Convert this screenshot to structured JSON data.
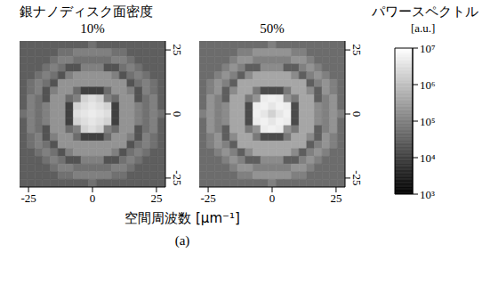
{
  "title": "銀ナノディスク面密度",
  "figure_label": "(a)",
  "x_label": "空間周波数 [μm⁻¹]",
  "colorbar": {
    "title": "パワースペクトル",
    "unit": "[a.u.]",
    "range": [
      1000,
      10000000
    ],
    "ticks": [
      {
        "value": 1000,
        "label": "10³"
      },
      {
        "value": 10000,
        "label": "10⁴"
      },
      {
        "value": 100000,
        "label": "10⁵"
      },
      {
        "value": 1000000,
        "label": "10⁶"
      },
      {
        "value": 10000000,
        "label": "10⁷"
      }
    ],
    "log": true,
    "colors": [
      "#000000",
      "#ffffff"
    ]
  },
  "chart_data": [
    {
      "type": "heatmap",
      "title": "10%",
      "x": [
        -27,
        -24,
        -21,
        -18,
        -15,
        -12,
        -9,
        -6,
        -3,
        0,
        3,
        6,
        9,
        12,
        15,
        18,
        21,
        24,
        27
      ],
      "y": [
        27,
        24,
        21,
        18,
        15,
        12,
        9,
        6,
        3,
        0,
        -3,
        -6,
        -9,
        -12,
        -15,
        -18,
        -21,
        -24,
        -27
      ],
      "xlim": [
        -28.5,
        28.5
      ],
      "ylim": [
        -28.5,
        28.5
      ],
      "xticks": [
        -25,
        0,
        25
      ],
      "yticks": [
        -25,
        0,
        25
      ],
      "cells": [
        [
          30000.0,
          30000.0,
          30000.0,
          30000.0,
          30000.0,
          30000.0,
          30000.0,
          30000.0,
          30000.0,
          60000.0,
          30000.0,
          30000.0,
          30000.0,
          30000.0,
          30000.0,
          30000.0,
          30000.0,
          30000.0,
          30000.0
        ],
        [
          30000.0,
          30000.0,
          30000.0,
          30000.0,
          30000.0,
          60000.0,
          60000.0,
          100000.0,
          100000.0,
          100000.0,
          100000.0,
          100000.0,
          60000.0,
          60000.0,
          30000.0,
          30000.0,
          30000.0,
          30000.0,
          30000.0
        ],
        [
          30000.0,
          30000.0,
          30000.0,
          30000.0,
          60000.0,
          100000.0,
          100000.0,
          60000.0,
          60000.0,
          60000.0,
          60000.0,
          60000.0,
          100000.0,
          100000.0,
          60000.0,
          30000.0,
          30000.0,
          30000.0,
          30000.0
        ],
        [
          30000.0,
          30000.0,
          30000.0,
          60000.0,
          100000.0,
          60000.0,
          20000.0,
          20000.0,
          100000.0,
          100000.0,
          100000.0,
          20000.0,
          20000.0,
          60000.0,
          100000.0,
          60000.0,
          30000.0,
          30000.0,
          30000.0
        ],
        [
          30000.0,
          30000.0,
          60000.0,
          100000.0,
          60000.0,
          20000.0,
          100000.0,
          200000.0,
          200000.0,
          200000.0,
          200000.0,
          200000.0,
          100000.0,
          20000.0,
          60000.0,
          100000.0,
          60000.0,
          30000.0,
          30000.0
        ],
        [
          30000.0,
          60000.0,
          100000.0,
          60000.0,
          20000.0,
          200000.0,
          200000.0,
          200000.0,
          200000.0,
          200000.0,
          200000.0,
          200000.0,
          200000.0,
          200000.0,
          20000.0,
          60000.0,
          100000.0,
          60000.0,
          30000.0
        ],
        [
          30000.0,
          60000.0,
          100000.0,
          20000.0,
          100000.0,
          200000.0,
          200000.0,
          50000.0,
          10000.0,
          10000.0,
          10000.0,
          50000.0,
          200000.0,
          200000.0,
          100000.0,
          20000.0,
          100000.0,
          60000.0,
          30000.0
        ],
        [
          30000.0,
          100000.0,
          60000.0,
          20000.0,
          200000.0,
          200000.0,
          50000.0,
          100000.0,
          2000000.0,
          3000000.0,
          2000000.0,
          100000.0,
          50000.0,
          200000.0,
          200000.0,
          20000.0,
          60000.0,
          100000.0,
          30000.0
        ],
        [
          30000.0,
          100000.0,
          60000.0,
          100000.0,
          200000.0,
          200000.0,
          10000.0,
          2000000.0,
          3000000.0,
          4000000.0,
          3000000.0,
          2000000.0,
          10000.0,
          200000.0,
          200000.0,
          100000.0,
          60000.0,
          100000.0,
          30000.0
        ],
        [
          60000.0,
          100000.0,
          60000.0,
          100000.0,
          200000.0,
          200000.0,
          10000.0,
          3000000.0,
          4000000.0,
          5000000.0,
          4000000.0,
          3000000.0,
          10000.0,
          200000.0,
          200000.0,
          100000.0,
          60000.0,
          100000.0,
          60000.0
        ],
        [
          30000.0,
          100000.0,
          60000.0,
          100000.0,
          200000.0,
          200000.0,
          10000.0,
          2000000.0,
          3000000.0,
          4000000.0,
          3000000.0,
          2000000.0,
          10000.0,
          200000.0,
          200000.0,
          100000.0,
          60000.0,
          100000.0,
          30000.0
        ],
        [
          30000.0,
          100000.0,
          60000.0,
          20000.0,
          200000.0,
          200000.0,
          50000.0,
          100000.0,
          2000000.0,
          3000000.0,
          2000000.0,
          100000.0,
          50000.0,
          200000.0,
          200000.0,
          20000.0,
          60000.0,
          100000.0,
          30000.0
        ],
        [
          30000.0,
          60000.0,
          100000.0,
          20000.0,
          100000.0,
          200000.0,
          200000.0,
          50000.0,
          10000.0,
          10000.0,
          10000.0,
          50000.0,
          200000.0,
          200000.0,
          100000.0,
          20000.0,
          100000.0,
          60000.0,
          30000.0
        ],
        [
          30000.0,
          60000.0,
          100000.0,
          60000.0,
          20000.0,
          200000.0,
          200000.0,
          200000.0,
          200000.0,
          200000.0,
          200000.0,
          200000.0,
          200000.0,
          200000.0,
          20000.0,
          60000.0,
          100000.0,
          60000.0,
          30000.0
        ],
        [
          30000.0,
          30000.0,
          60000.0,
          100000.0,
          60000.0,
          20000.0,
          100000.0,
          200000.0,
          200000.0,
          200000.0,
          200000.0,
          200000.0,
          100000.0,
          20000.0,
          60000.0,
          100000.0,
          60000.0,
          30000.0,
          30000.0
        ],
        [
          30000.0,
          30000.0,
          30000.0,
          60000.0,
          100000.0,
          60000.0,
          20000.0,
          20000.0,
          100000.0,
          100000.0,
          100000.0,
          20000.0,
          20000.0,
          60000.0,
          100000.0,
          60000.0,
          30000.0,
          30000.0,
          30000.0
        ],
        [
          30000.0,
          30000.0,
          30000.0,
          30000.0,
          60000.0,
          100000.0,
          100000.0,
          60000.0,
          60000.0,
          60000.0,
          60000.0,
          60000.0,
          100000.0,
          100000.0,
          60000.0,
          30000.0,
          30000.0,
          30000.0,
          30000.0
        ],
        [
          30000.0,
          30000.0,
          30000.0,
          30000.0,
          30000.0,
          60000.0,
          60000.0,
          100000.0,
          100000.0,
          100000.0,
          100000.0,
          100000.0,
          60000.0,
          60000.0,
          30000.0,
          30000.0,
          30000.0,
          30000.0,
          30000.0
        ],
        [
          30000.0,
          30000.0,
          30000.0,
          30000.0,
          30000.0,
          30000.0,
          30000.0,
          30000.0,
          30000.0,
          60000.0,
          30000.0,
          30000.0,
          30000.0,
          30000.0,
          30000.0,
          30000.0,
          30000.0,
          30000.0,
          30000.0
        ]
      ]
    },
    {
      "type": "heatmap",
      "title": "50%",
      "x": [
        -27,
        -24,
        -21,
        -18,
        -15,
        -12,
        -9,
        -6,
        -3,
        0,
        3,
        6,
        9,
        12,
        15,
        18,
        21,
        24,
        27
      ],
      "y": [
        27,
        24,
        21,
        18,
        15,
        12,
        9,
        6,
        3,
        0,
        -3,
        -6,
        -9,
        -12,
        -15,
        -18,
        -21,
        -24,
        -27
      ],
      "xlim": [
        -28.5,
        28.5
      ],
      "ylim": [
        -28.5,
        28.5
      ],
      "xticks": [
        -25,
        0,
        25
      ],
      "yticks": [
        -25,
        0,
        25
      ],
      "cells": [
        [
          50000.0,
          50000.0,
          50000.0,
          50000.0,
          50000.0,
          50000.0,
          50000.0,
          50000.0,
          50000.0,
          100000.0,
          50000.0,
          50000.0,
          50000.0,
          50000.0,
          50000.0,
          50000.0,
          50000.0,
          50000.0,
          50000.0
        ],
        [
          50000.0,
          50000.0,
          50000.0,
          50000.0,
          50000.0,
          100000.0,
          100000.0,
          200000.0,
          200000.0,
          200000.0,
          200000.0,
          200000.0,
          100000.0,
          100000.0,
          50000.0,
          50000.0,
          50000.0,
          50000.0,
          50000.0
        ],
        [
          50000.0,
          50000.0,
          50000.0,
          50000.0,
          100000.0,
          200000.0,
          200000.0,
          100000.0,
          100000.0,
          100000.0,
          100000.0,
          100000.0,
          200000.0,
          200000.0,
          100000.0,
          50000.0,
          50000.0,
          50000.0,
          50000.0
        ],
        [
          50000.0,
          50000.0,
          50000.0,
          100000.0,
          200000.0,
          100000.0,
          30000.0,
          30000.0,
          150000.0,
          150000.0,
          150000.0,
          30000.0,
          30000.0,
          100000.0,
          200000.0,
          100000.0,
          50000.0,
          50000.0,
          50000.0
        ],
        [
          50000.0,
          50000.0,
          100000.0,
          200000.0,
          100000.0,
          30000.0,
          150000.0,
          400000.0,
          400000.0,
          400000.0,
          400000.0,
          400000.0,
          150000.0,
          30000.0,
          100000.0,
          200000.0,
          100000.0,
          50000.0,
          50000.0
        ],
        [
          50000.0,
          100000.0,
          200000.0,
          100000.0,
          30000.0,
          400000.0,
          400000.0,
          400000.0,
          400000.0,
          400000.0,
          400000.0,
          400000.0,
          400000.0,
          400000.0,
          30000.0,
          100000.0,
          200000.0,
          100000.0,
          50000.0
        ],
        [
          50000.0,
          100000.0,
          200000.0,
          30000.0,
          150000.0,
          400000.0,
          400000.0,
          80000.0,
          15000.0,
          15000.0,
          15000.0,
          80000.0,
          400000.0,
          400000.0,
          150000.0,
          30000.0,
          200000.0,
          100000.0,
          50000.0
        ],
        [
          50000.0,
          200000.0,
          100000.0,
          30000.0,
          400000.0,
          400000.0,
          80000.0,
          200000.0,
          5000000.0,
          6000000.0,
          5000000.0,
          200000.0,
          80000.0,
          400000.0,
          400000.0,
          30000.0,
          100000.0,
          200000.0,
          50000.0
        ],
        [
          50000.0,
          200000.0,
          100000.0,
          150000.0,
          400000.0,
          400000.0,
          15000.0,
          5000000.0,
          6000000.0,
          4000000.0,
          6000000.0,
          5000000.0,
          15000.0,
          400000.0,
          400000.0,
          150000.0,
          100000.0,
          200000.0,
          50000.0
        ],
        [
          100000.0,
          200000.0,
          100000.0,
          150000.0,
          400000.0,
          400000.0,
          15000.0,
          6000000.0,
          4000000.0,
          2000000.0,
          4000000.0,
          6000000.0,
          15000.0,
          400000.0,
          400000.0,
          150000.0,
          100000.0,
          200000.0,
          100000.0
        ],
        [
          50000.0,
          200000.0,
          100000.0,
          150000.0,
          400000.0,
          400000.0,
          15000.0,
          5000000.0,
          6000000.0,
          4000000.0,
          6000000.0,
          5000000.0,
          15000.0,
          400000.0,
          400000.0,
          150000.0,
          100000.0,
          200000.0,
          50000.0
        ],
        [
          50000.0,
          200000.0,
          100000.0,
          30000.0,
          400000.0,
          400000.0,
          80000.0,
          200000.0,
          5000000.0,
          6000000.0,
          5000000.0,
          200000.0,
          80000.0,
          400000.0,
          400000.0,
          30000.0,
          100000.0,
          200000.0,
          50000.0
        ],
        [
          50000.0,
          100000.0,
          200000.0,
          30000.0,
          150000.0,
          400000.0,
          400000.0,
          80000.0,
          15000.0,
          15000.0,
          15000.0,
          80000.0,
          400000.0,
          400000.0,
          150000.0,
          30000.0,
          200000.0,
          100000.0,
          50000.0
        ],
        [
          50000.0,
          100000.0,
          200000.0,
          100000.0,
          30000.0,
          400000.0,
          400000.0,
          400000.0,
          400000.0,
          400000.0,
          400000.0,
          400000.0,
          400000.0,
          400000.0,
          30000.0,
          100000.0,
          200000.0,
          100000.0,
          50000.0
        ],
        [
          50000.0,
          50000.0,
          100000.0,
          200000.0,
          100000.0,
          30000.0,
          150000.0,
          400000.0,
          400000.0,
          400000.0,
          400000.0,
          400000.0,
          150000.0,
          30000.0,
          100000.0,
          200000.0,
          100000.0,
          50000.0,
          50000.0
        ],
        [
          50000.0,
          50000.0,
          50000.0,
          100000.0,
          200000.0,
          100000.0,
          30000.0,
          30000.0,
          150000.0,
          150000.0,
          150000.0,
          30000.0,
          30000.0,
          100000.0,
          200000.0,
          100000.0,
          50000.0,
          50000.0,
          50000.0
        ],
        [
          50000.0,
          50000.0,
          50000.0,
          50000.0,
          100000.0,
          200000.0,
          200000.0,
          100000.0,
          100000.0,
          100000.0,
          100000.0,
          100000.0,
          200000.0,
          200000.0,
          100000.0,
          50000.0,
          50000.0,
          50000.0,
          50000.0
        ],
        [
          50000.0,
          50000.0,
          50000.0,
          50000.0,
          50000.0,
          100000.0,
          100000.0,
          200000.0,
          200000.0,
          200000.0,
          200000.0,
          200000.0,
          100000.0,
          100000.0,
          50000.0,
          50000.0,
          50000.0,
          50000.0,
          50000.0
        ],
        [
          50000.0,
          50000.0,
          50000.0,
          50000.0,
          50000.0,
          50000.0,
          50000.0,
          50000.0,
          50000.0,
          100000.0,
          50000.0,
          50000.0,
          50000.0,
          50000.0,
          50000.0,
          50000.0,
          50000.0,
          50000.0,
          50000.0
        ]
      ]
    }
  ]
}
